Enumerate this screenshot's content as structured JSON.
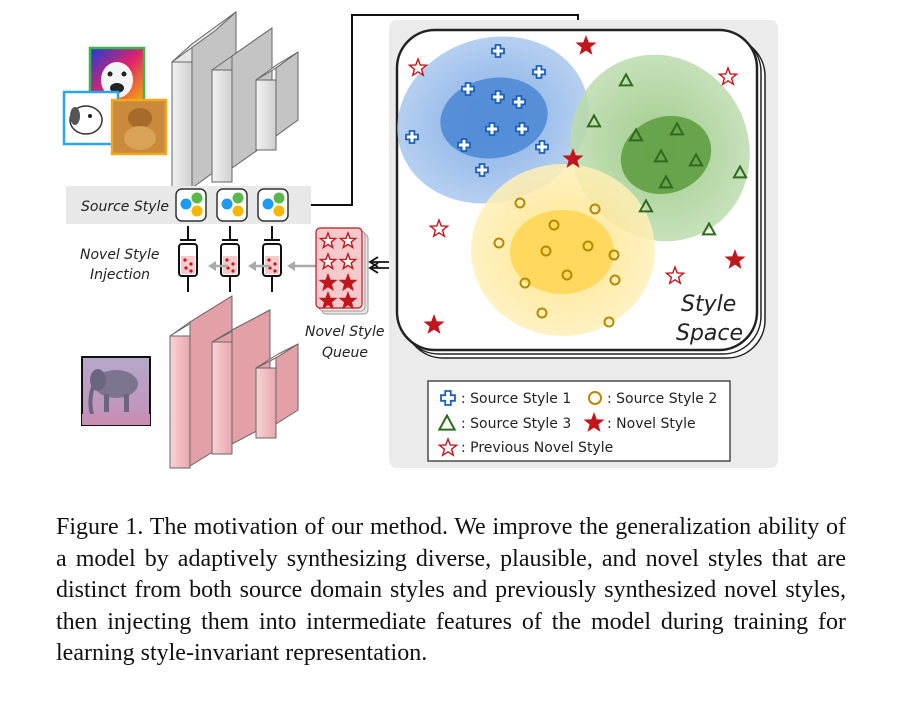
{
  "labels": {
    "source_style": "Source Style",
    "novel_style_injection": [
      "Novel Style",
      "Injection"
    ],
    "novel_style_queue": [
      "Novel Style",
      "Queue"
    ],
    "style_space": [
      "Style",
      "Space"
    ]
  },
  "legend": {
    "source_style_1": ": Source Style 1",
    "source_style_2": ": Source Style 2",
    "source_style_3": ": Source Style 3",
    "novel_style": ": Novel Style",
    "previous_novel_style": ": Previous Novel Style"
  },
  "colors": {
    "style1": "#3b7bd4",
    "style2": "#b58a00",
    "style3": "#2f6b1e",
    "novel": "#c0161c",
    "encoder": "#d9d9d9",
    "decoder": "#f0b8bd"
  },
  "icons": [
    "dog-collage-image",
    "elephant-image",
    "syringe-icon",
    "cross-marker-icon",
    "circle-marker-icon",
    "triangle-marker-icon",
    "star-marker-icon"
  ],
  "caption": "Figure 1. The motivation of our method. We improve the generalization ability of a model by adaptively synthesizing diverse, plausible, and novel styles that are distinct from both source domain styles and previously synthesized novel styles, then injecting them into intermediate features of the model during training for learning style-invariant representation."
}
